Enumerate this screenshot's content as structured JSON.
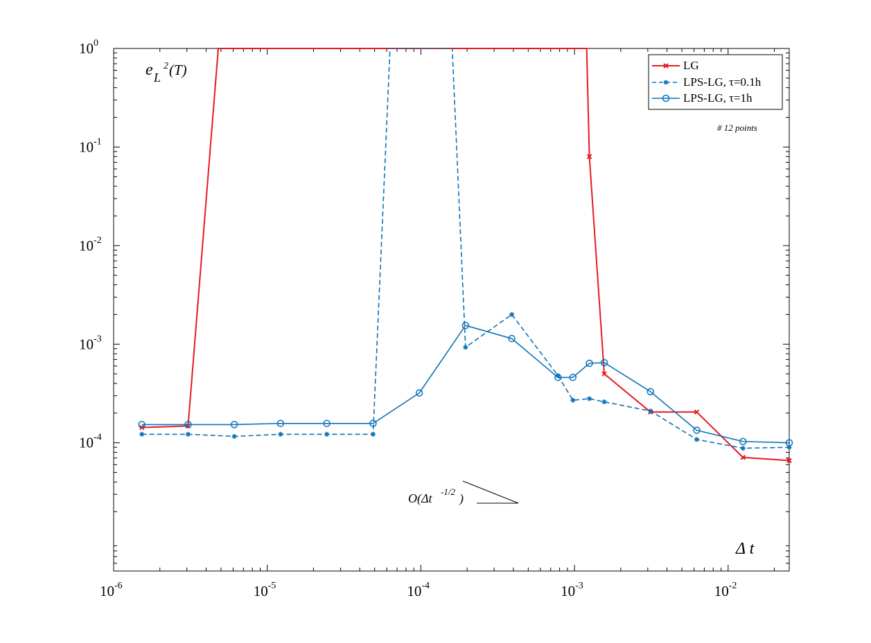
{
  "chart_data": {
    "type": "line",
    "xscale": "log",
    "yscale": "log",
    "xlim": [
      1e-06,
      0.025
    ],
    "ylim": [
      5e-06,
      1
    ],
    "xticks": [
      {
        "mant": "10",
        "exp": "-6",
        "value": 1e-06
      },
      {
        "mant": "10",
        "exp": "-5",
        "value": 1e-05
      },
      {
        "mant": "10",
        "exp": "-4",
        "value": 0.0001
      },
      {
        "mant": "10",
        "exp": "-3",
        "value": 0.001
      },
      {
        "mant": "10",
        "exp": "-2",
        "value": 0.01
      }
    ],
    "yticks": [
      {
        "mant": "10",
        "exp": "0",
        "value": 1
      },
      {
        "mant": "10",
        "exp": "-1",
        "value": 0.1
      },
      {
        "mant": "10",
        "exp": "-2",
        "value": 0.01
      },
      {
        "mant": "10",
        "exp": "-3",
        "value": 0.001
      },
      {
        "mant": "10",
        "exp": "-4",
        "value": 0.0001
      }
    ],
    "ylabel": {
      "base": "e",
      "sub": "L",
      "sup": "2",
      "tail": "(T)"
    },
    "xlabel": "Δ t",
    "annotation": "# 12 points",
    "order_label": {
      "base": "O(Δt",
      "sup": "-1/2",
      "tail": ")"
    },
    "legend_position": "top-right",
    "x": [
      1.5259e-06,
      3.0518e-06,
      6.1035e-06,
      1.2207e-05,
      2.4414e-05,
      4.8828e-05,
      9.7656e-05,
      0.00019531,
      0.00039063,
      0.00078125,
      0.00097656,
      0.00125,
      0.0015625,
      0.003125,
      0.00625,
      0.0125,
      0.025
    ],
    "series": [
      {
        "name": "LG",
        "color": "#e6191e",
        "marker": "x",
        "dash": "solid",
        "points": [
          [
            1.5259e-06,
            0.000143
          ],
          [
            3.0518e-06,
            0.000148
          ],
          [
            4.8e-06,
            1.0
          ],
          [
            0.0012,
            1.0
          ],
          [
            0.00125,
            0.08
          ],
          [
            0.0015625,
            0.0005
          ],
          [
            0.003125,
            0.000205
          ],
          [
            0.00625,
            0.000205
          ],
          [
            0.0125,
            7.1e-05
          ],
          [
            0.025,
            6.6e-05
          ]
        ],
        "marker_points": [
          [
            1.5259e-06,
            0.000143
          ],
          [
            3.0518e-06,
            0.000148
          ],
          [
            0.00125,
            0.08
          ],
          [
            0.0015625,
            0.0005
          ],
          [
            0.003125,
            0.000205
          ],
          [
            0.00625,
            0.000205
          ],
          [
            0.0125,
            7.1e-05
          ],
          [
            0.025,
            6.6e-05
          ]
        ]
      },
      {
        "name": "LPS-LG, τ=0.1h",
        "color": "#0c72b8",
        "marker": "asterisk",
        "dash": "dashed",
        "points": [
          [
            1.5259e-06,
            0.000122
          ],
          [
            3.0518e-06,
            0.000122
          ],
          [
            6.1035e-06,
            0.000116
          ],
          [
            1.2207e-05,
            0.000122
          ],
          [
            2.4414e-05,
            0.000122
          ],
          [
            4.8828e-05,
            0.000122
          ],
          [
            6.3e-05,
            1.0
          ],
          [
            0.00016,
            1.0
          ],
          [
            0.00019531,
            0.00093
          ],
          [
            0.00039063,
            0.002
          ],
          [
            0.00078125,
            0.00048
          ],
          [
            0.00097656,
            0.00027
          ],
          [
            0.00125,
            0.00028
          ],
          [
            0.0015625,
            0.00026
          ],
          [
            0.003125,
            0.00021
          ],
          [
            0.00625,
            0.000108
          ],
          [
            0.0125,
            8.8e-05
          ],
          [
            0.025,
            9e-05
          ]
        ],
        "marker_points": [
          [
            1.5259e-06,
            0.000122
          ],
          [
            3.0518e-06,
            0.000122
          ],
          [
            6.1035e-06,
            0.000116
          ],
          [
            1.2207e-05,
            0.000122
          ],
          [
            2.4414e-05,
            0.000122
          ],
          [
            4.8828e-05,
            0.000122
          ],
          [
            0.00019531,
            0.00093
          ],
          [
            0.00039063,
            0.002
          ],
          [
            0.00078125,
            0.00048
          ],
          [
            0.00097656,
            0.00027
          ],
          [
            0.00125,
            0.00028
          ],
          [
            0.0015625,
            0.00026
          ],
          [
            0.003125,
            0.00021
          ],
          [
            0.00625,
            0.000108
          ],
          [
            0.0125,
            8.8e-05
          ],
          [
            0.025,
            9e-05
          ]
        ]
      },
      {
        "name": "LPS-LG, τ=1h",
        "color": "#0c72b8",
        "marker": "circle",
        "dash": "solid",
        "points": [
          [
            1.5259e-06,
            0.000153
          ],
          [
            3.0518e-06,
            0.000153
          ],
          [
            6.1035e-06,
            0.000153
          ],
          [
            1.2207e-05,
            0.000157
          ],
          [
            2.4414e-05,
            0.000157
          ],
          [
            4.8828e-05,
            0.000157
          ],
          [
            9.7656e-05,
            0.00032
          ],
          [
            0.00019531,
            0.00155
          ],
          [
            0.00039063,
            0.00114
          ],
          [
            0.00078125,
            0.00046
          ],
          [
            0.00097656,
            0.00046
          ],
          [
            0.00125,
            0.00064
          ],
          [
            0.0015625,
            0.00065
          ],
          [
            0.003125,
            0.00033
          ],
          [
            0.00625,
            0.000134
          ],
          [
            0.0125,
            0.000103
          ],
          [
            0.025,
            0.0001
          ]
        ],
        "marker_points": [
          [
            1.5259e-06,
            0.000153
          ],
          [
            3.0518e-06,
            0.000153
          ],
          [
            6.1035e-06,
            0.000153
          ],
          [
            1.2207e-05,
            0.000157
          ],
          [
            2.4414e-05,
            0.000157
          ],
          [
            4.8828e-05,
            0.000157
          ],
          [
            9.7656e-05,
            0.00032
          ],
          [
            0.00019531,
            0.00155
          ],
          [
            0.00039063,
            0.00114
          ],
          [
            0.00078125,
            0.00046
          ],
          [
            0.00097656,
            0.00046
          ],
          [
            0.00125,
            0.00064
          ],
          [
            0.0015625,
            0.00065
          ],
          [
            0.003125,
            0.00033
          ],
          [
            0.00625,
            0.000134
          ],
          [
            0.0125,
            0.000103
          ],
          [
            0.025,
            0.0001
          ]
        ]
      }
    ],
    "legend_labels": [
      "LG",
      "LPS-LG, τ=0.1h",
      "LPS-LG, τ=1h"
    ]
  }
}
